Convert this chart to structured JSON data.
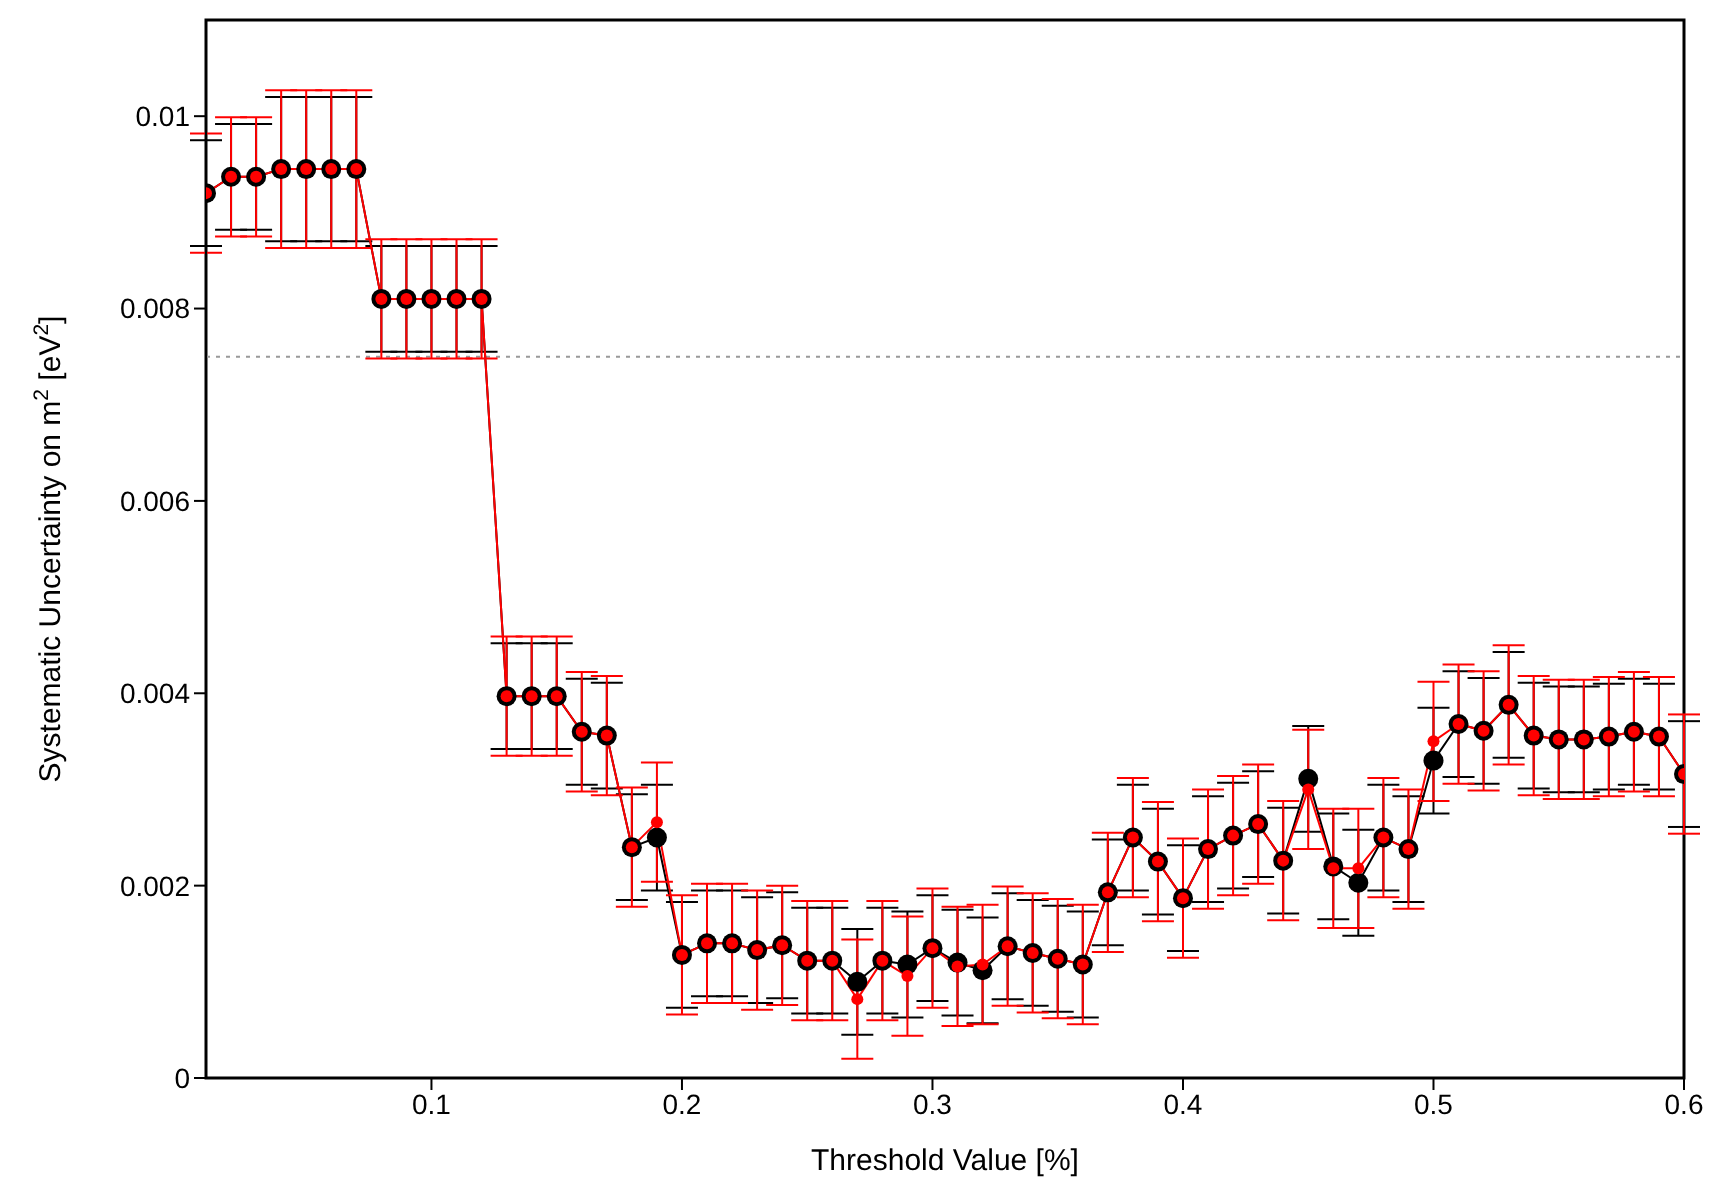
{
  "chart_data": {
    "type": "line",
    "xlabel": "Threshold Value [%]",
    "ylabel": "Systematic Uncertainty on m$^{2}$ [eV$^{2}$]",
    "x": [
      0.01,
      0.02,
      0.03,
      0.04,
      0.05,
      0.06,
      0.07,
      0.08,
      0.09,
      0.1,
      0.11,
      0.12,
      0.13,
      0.14,
      0.15,
      0.16,
      0.17,
      0.18,
      0.19,
      0.2,
      0.21,
      0.22,
      0.23,
      0.24,
      0.25,
      0.26,
      0.27,
      0.28,
      0.29,
      0.3,
      0.31,
      0.32,
      0.33,
      0.34,
      0.35,
      0.36,
      0.37,
      0.38,
      0.39,
      0.4,
      0.41,
      0.42,
      0.43,
      0.44,
      0.45,
      0.46,
      0.47,
      0.48,
      0.49,
      0.5,
      0.51,
      0.52,
      0.53,
      0.54,
      0.55,
      0.56,
      0.57,
      0.58,
      0.59,
      0.6
    ],
    "series": [
      {
        "color": "#000000",
        "values": [
          0.0092,
          0.00937,
          0.00937,
          0.00945,
          0.00945,
          0.00945,
          0.00945,
          0.0081,
          0.0081,
          0.0081,
          0.0081,
          0.0081,
          0.00397,
          0.00397,
          0.00397,
          0.0036,
          0.00356,
          0.0024,
          0.0025,
          0.00128,
          0.0014,
          0.0014,
          0.00133,
          0.00138,
          0.00122,
          0.00122,
          0.001,
          0.00122,
          0.00118,
          0.00135,
          0.0012,
          0.00112,
          0.00137,
          0.0013,
          0.00124,
          0.00118,
          0.00193,
          0.0025,
          0.00225,
          0.00187,
          0.00238,
          0.00252,
          0.00264,
          0.00226,
          0.00311,
          0.0022,
          0.00203,
          0.0025,
          0.00238,
          0.0033,
          0.00368,
          0.00361,
          0.00388,
          0.00356,
          0.00352,
          0.00352,
          0.00355,
          0.0036,
          0.00355,
          0.00316
        ],
        "errors": [
          0.00055,
          0.00055,
          0.00055,
          0.00075,
          0.00075,
          0.00075,
          0.00075,
          0.00055,
          0.00055,
          0.00055,
          0.00055,
          0.00055,
          0.00055,
          0.00055,
          0.00055,
          0.00055,
          0.00055,
          0.00055,
          0.00055,
          0.00055,
          0.00055,
          0.00055,
          0.00055,
          0.00055,
          0.00055,
          0.00055,
          0.00055,
          0.00055,
          0.00055,
          0.00055,
          0.00055,
          0.00055,
          0.00055,
          0.00055,
          0.00055,
          0.00055,
          0.00055,
          0.00055,
          0.00055,
          0.00055,
          0.00055,
          0.00055,
          0.00055,
          0.00055,
          0.00055,
          0.00055,
          0.00055,
          0.00055,
          0.00055,
          0.00055,
          0.00055,
          0.00055,
          0.00055,
          0.00055,
          0.00055,
          0.00055,
          0.00055,
          0.00055,
          0.00055,
          0.00055
        ]
      },
      {
        "color": "#ff0000",
        "values": [
          0.0092,
          0.00937,
          0.00937,
          0.00945,
          0.00945,
          0.00945,
          0.00945,
          0.0081,
          0.0081,
          0.0081,
          0.0081,
          0.0081,
          0.00397,
          0.00397,
          0.00397,
          0.0036,
          0.00356,
          0.0024,
          0.00266,
          0.00128,
          0.0014,
          0.0014,
          0.00133,
          0.00138,
          0.00122,
          0.00122,
          0.00082,
          0.00122,
          0.00106,
          0.00135,
          0.00116,
          0.00118,
          0.00137,
          0.0013,
          0.00124,
          0.00118,
          0.00193,
          0.0025,
          0.00225,
          0.00187,
          0.00238,
          0.00252,
          0.00264,
          0.00226,
          0.003,
          0.00218,
          0.00218,
          0.0025,
          0.00238,
          0.0035,
          0.00368,
          0.00361,
          0.00388,
          0.00356,
          0.00352,
          0.00352,
          0.00355,
          0.0036,
          0.00355,
          0.00316
        ],
        "errors": [
          0.00062,
          0.00062,
          0.00062,
          0.00082,
          0.00082,
          0.00082,
          0.00082,
          0.00062,
          0.00062,
          0.00062,
          0.00062,
          0.00062,
          0.00062,
          0.00062,
          0.00062,
          0.00062,
          0.00062,
          0.00062,
          0.00062,
          0.00062,
          0.00062,
          0.00062,
          0.00062,
          0.00062,
          0.00062,
          0.00062,
          0.00062,
          0.00062,
          0.00062,
          0.00062,
          0.00062,
          0.00062,
          0.00062,
          0.00062,
          0.00062,
          0.00062,
          0.00062,
          0.00062,
          0.00062,
          0.00062,
          0.00062,
          0.00062,
          0.00062,
          0.00062,
          0.00062,
          0.00062,
          0.00062,
          0.00062,
          0.00062,
          0.00062,
          0.00062,
          0.00062,
          0.00062,
          0.00062,
          0.00062,
          0.00062,
          0.00062,
          0.00062,
          0.00062,
          0.00062
        ]
      }
    ],
    "xlim": [
      0.01,
      0.6
    ],
    "xticks": [
      0.1,
      0.2,
      0.3,
      0.4,
      0.5,
      0.6
    ],
    "ylim": [
      0,
      0.011
    ],
    "yticks": [
      0,
      0.002,
      0.004,
      0.006,
      0.008,
      0.01
    ],
    "ref_lines": [
      {
        "axis": "y",
        "value": 0.0075,
        "color": "#999999",
        "line_style": "dotted"
      }
    ],
    "marker": "circle",
    "line_style": "solid",
    "grid": false,
    "legend": false
  }
}
